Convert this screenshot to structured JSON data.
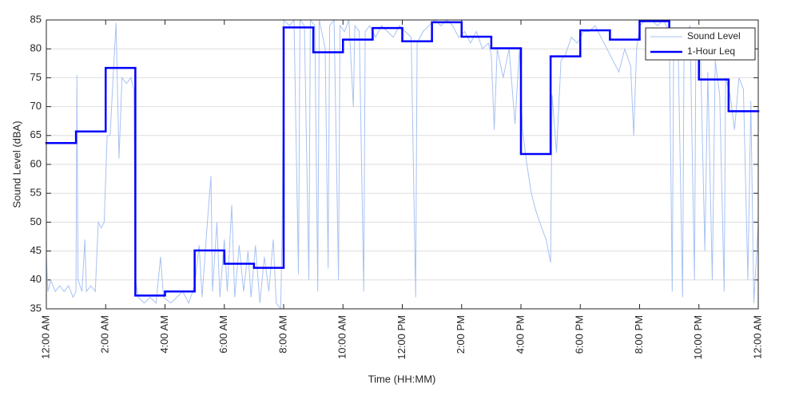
{
  "chart_data": {
    "type": "line",
    "xlabel": "Time (HH:MM)",
    "ylabel": "Sound Level (dBA)",
    "xlim": [
      0,
      24
    ],
    "ylim": [
      35,
      85
    ],
    "xticks": [
      {
        "value": 0,
        "label": "12:00 AM"
      },
      {
        "value": 2,
        "label": "2:00 AM"
      },
      {
        "value": 4,
        "label": "4:00 AM"
      },
      {
        "value": 6,
        "label": "6:00 AM"
      },
      {
        "value": 8,
        "label": "8:00 AM"
      },
      {
        "value": 10,
        "label": "10:00 AM"
      },
      {
        "value": 12,
        "label": "12:00 PM"
      },
      {
        "value": 14,
        "label": "2:00 PM"
      },
      {
        "value": 16,
        "label": "4:00 PM"
      },
      {
        "value": 18,
        "label": "6:00 PM"
      },
      {
        "value": 20,
        "label": "8:00 PM"
      },
      {
        "value": 22,
        "label": "10:00 PM"
      },
      {
        "value": 24,
        "label": "12:00 AM"
      }
    ],
    "yticks": [
      35,
      40,
      45,
      50,
      55,
      60,
      65,
      70,
      75,
      80,
      85
    ],
    "grid": true,
    "legend": "upper right",
    "series": [
      {
        "name": "Sound Level",
        "color": "#a8c2f2",
        "x": [
          0,
          0.05,
          0.15,
          0.3,
          0.45,
          0.6,
          0.75,
          0.9,
          1.0,
          1.03,
          1.07,
          1.2,
          1.3,
          1.35,
          1.5,
          1.65,
          1.75,
          1.85,
          1.95,
          2.05,
          2.15,
          2.25,
          2.35,
          2.45,
          2.55,
          2.7,
          2.85,
          2.95,
          3.0,
          3.1,
          3.3,
          3.5,
          3.7,
          3.85,
          3.95,
          4.2,
          4.4,
          4.6,
          4.8,
          5.0,
          5.15,
          5.25,
          5.4,
          5.55,
          5.6,
          5.75,
          5.85,
          6.0,
          6.1,
          6.25,
          6.35,
          6.5,
          6.65,
          6.8,
          6.9,
          7.05,
          7.2,
          7.35,
          7.5,
          7.65,
          7.75,
          7.9,
          7.95,
          8.0,
          8.2,
          8.35,
          8.5,
          8.55,
          8.7,
          8.85,
          8.9,
          9.05,
          9.15,
          9.2,
          9.4,
          9.5,
          9.55,
          9.7,
          9.85,
          9.9,
          10.05,
          10.2,
          10.35,
          10.4,
          10.55,
          10.7,
          10.75,
          10.9,
          11.1,
          11.3,
          11.5,
          11.7,
          11.9,
          12.1,
          12.3,
          12.45,
          12.5,
          12.7,
          12.9,
          13.1,
          13.3,
          13.5,
          13.7,
          13.9,
          14.1,
          14.3,
          14.5,
          14.7,
          14.9,
          15.0,
          15.1,
          15.2,
          15.4,
          15.6,
          15.8,
          15.95,
          16.05,
          16.2,
          16.35,
          16.5,
          16.7,
          16.85,
          17.0,
          17.05,
          17.2,
          17.35,
          17.5,
          17.7,
          17.9,
          18.1,
          18.3,
          18.5,
          18.7,
          18.9,
          19.1,
          19.3,
          19.5,
          19.7,
          19.8,
          19.9,
          20.0,
          20.2,
          20.4,
          20.6,
          20.8,
          21.0,
          21.1,
          21.15,
          21.3,
          21.45,
          21.5,
          21.7,
          21.85,
          21.9,
          22.05,
          22.2,
          22.3,
          22.45,
          22.55,
          22.7,
          22.85,
          22.9,
          23.05,
          23.2,
          23.35,
          23.5,
          23.65,
          23.75,
          23.85,
          23.95,
          24.0
        ],
        "values": [
          44,
          38,
          40,
          38,
          39,
          38,
          39,
          37,
          38,
          75.5,
          40,
          38,
          47,
          38,
          39,
          38,
          50,
          49,
          50,
          65,
          65,
          75,
          84.5,
          61,
          75,
          74,
          75,
          73,
          40,
          37,
          36,
          37,
          36,
          44,
          37,
          36,
          37,
          38,
          36,
          39,
          46,
          37,
          48,
          58,
          38,
          50,
          37,
          47,
          38,
          53,
          37,
          46,
          38,
          45,
          37,
          46,
          36,
          44,
          38,
          47,
          36,
          35,
          48,
          85,
          84,
          85,
          41,
          85,
          84,
          40,
          85,
          84,
          38,
          85,
          80,
          42,
          84,
          85,
          40,
          84,
          83,
          85,
          70,
          84,
          83,
          38,
          83,
          84,
          82,
          84,
          83,
          82,
          84,
          83,
          82,
          37,
          81,
          83,
          84,
          85,
          84,
          85,
          84,
          82,
          83,
          81,
          83,
          80,
          81,
          79,
          66,
          80,
          75,
          80,
          67,
          80,
          66,
          60,
          55,
          52,
          49,
          47,
          43,
          72,
          62,
          78,
          79,
          82,
          81,
          83,
          83,
          84,
          82,
          80,
          78,
          76,
          80,
          77,
          65,
          80,
          84,
          85,
          85,
          84,
          85,
          83,
          38,
          82,
          80,
          37,
          82,
          84,
          40,
          83,
          80,
          45,
          76,
          40,
          78,
          72,
          38,
          75,
          72,
          66,
          75,
          73,
          40,
          71,
          36,
          45,
          50
        ]
      },
      {
        "name": "1-Hour Leq",
        "color": "#0000ff",
        "drawstyle": "steps-post",
        "x": [
          0,
          1,
          2,
          3,
          4,
          5,
          6,
          7,
          8,
          9,
          10,
          11,
          12,
          13,
          14,
          15,
          16,
          17,
          18,
          19,
          20,
          21,
          22,
          23
        ],
        "values": [
          63.7,
          65.7,
          76.7,
          37.3,
          38.0,
          45.1,
          42.8,
          42.1,
          83.7,
          79.4,
          81.6,
          83.6,
          81.3,
          84.6,
          82.1,
          80.1,
          61.8,
          78.7,
          83.2,
          81.6,
          84.8,
          80.6,
          74.7,
          69.2
        ]
      }
    ]
  }
}
